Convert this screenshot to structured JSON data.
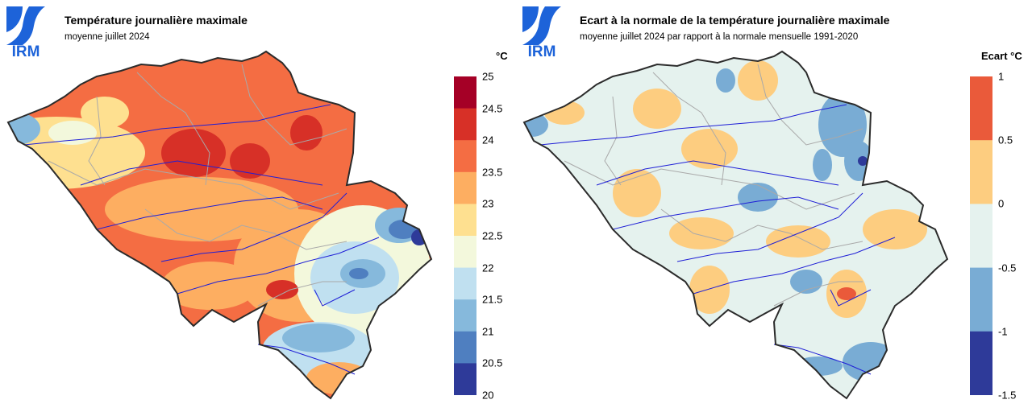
{
  "logo_text": "IRM",
  "colors": {
    "brand_blue": "#1d63d9",
    "river": "#1f1fd6",
    "border": "#2b2b2b",
    "province": "#a9a9a9"
  },
  "left_panel": {
    "title": "Température journalière maximale",
    "subtitle": "moyenne juillet 2024",
    "unit": "°C",
    "legend": {
      "ticks": [
        "25",
        "24.5",
        "24",
        "23.5",
        "23",
        "22.5",
        "22",
        "21.5",
        "21",
        "20.5",
        "20"
      ],
      "colors": [
        "#a50026",
        "#d73027",
        "#f46d43",
        "#fdae61",
        "#fee090",
        "#f3f8dc",
        "#c0e0f0",
        "#86b9dc",
        "#4f7fc0",
        "#2e3a99"
      ]
    }
  },
  "right_panel": {
    "title": "Ecart à la normale de la température journalière maximale",
    "subtitle": "moyenne juillet 2024 par rapport à la normale mensuelle 1991-2020",
    "unit": "Ecart °C",
    "legend": {
      "ticks": [
        "1",
        "0.5",
        "0",
        "-0.5",
        "-1",
        "-1.5"
      ],
      "colors": [
        "#ea5a3a",
        "#fdcd80",
        "#e5f2ee",
        "#79acd4",
        "#2e3a99"
      ]
    }
  }
}
